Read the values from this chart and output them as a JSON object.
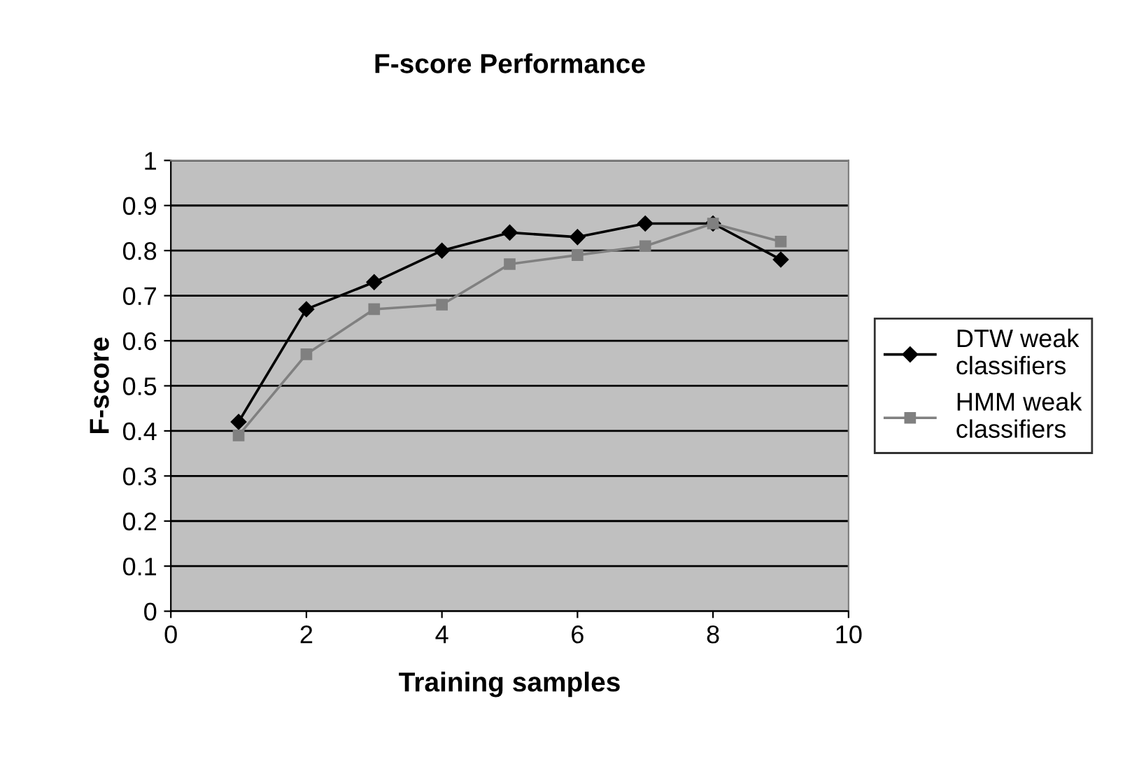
{
  "chart_data": {
    "type": "line",
    "title": "F-score Performance",
    "xlabel": "Training samples",
    "ylabel": "F-score",
    "x": [
      1,
      2,
      3,
      4,
      5,
      6,
      7,
      8,
      9
    ],
    "series": [
      {
        "name": "DTW weak classifiers",
        "color": "#000000",
        "marker": "diamond",
        "values": [
          0.42,
          0.67,
          0.73,
          0.8,
          0.84,
          0.83,
          0.86,
          0.86,
          0.78
        ]
      },
      {
        "name": "HMM weak classifiers",
        "color": "#808080",
        "marker": "square",
        "values": [
          0.39,
          0.57,
          0.67,
          0.68,
          0.77,
          0.79,
          0.81,
          0.86,
          0.82
        ]
      }
    ],
    "xlim": [
      0,
      10
    ],
    "xticks": [
      0,
      2,
      4,
      6,
      8,
      10
    ],
    "ylim": [
      0,
      1
    ],
    "yticks": [
      0,
      0.1,
      0.2,
      0.3,
      0.4,
      0.5,
      0.6,
      0.7,
      0.8,
      0.9,
      1
    ],
    "grid": "y",
    "legend": "right"
  }
}
